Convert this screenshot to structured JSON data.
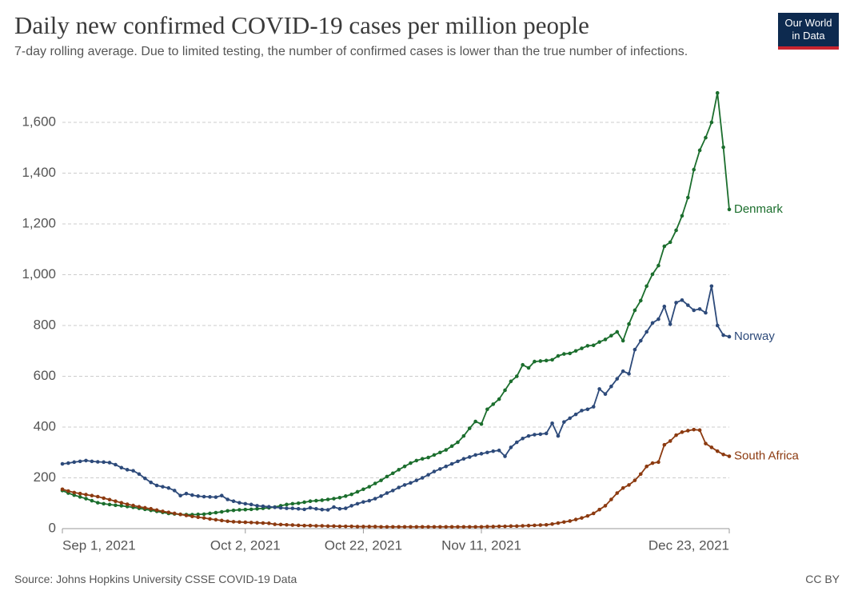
{
  "chart_data": {
    "type": "line",
    "title": "Daily new confirmed COVID-19 cases per million people",
    "subtitle": "7-day rolling average. Due to limited testing, the number of confirmed cases is lower than the true number of infections.",
    "logo": [
      "Our World",
      "in Data"
    ],
    "source": "Source: Johns Hopkins University CSSE COVID-19 Data",
    "license": "CC BY",
    "x": [
      "2021-09-01",
      "2021-09-02",
      "2021-09-03",
      "2021-09-04",
      "2021-09-05",
      "2021-09-06",
      "2021-09-07",
      "2021-09-08",
      "2021-09-09",
      "2021-09-10",
      "2021-09-11",
      "2021-09-12",
      "2021-09-13",
      "2021-09-14",
      "2021-09-15",
      "2021-09-16",
      "2021-09-17",
      "2021-09-18",
      "2021-09-19",
      "2021-09-20",
      "2021-09-21",
      "2021-09-22",
      "2021-09-23",
      "2021-09-24",
      "2021-09-25",
      "2021-09-26",
      "2021-09-27",
      "2021-09-28",
      "2021-09-29",
      "2021-09-30",
      "2021-10-01",
      "2021-10-02",
      "2021-10-03",
      "2021-10-04",
      "2021-10-05",
      "2021-10-06",
      "2021-10-07",
      "2021-10-08",
      "2021-10-09",
      "2021-10-10",
      "2021-10-11",
      "2021-10-12",
      "2021-10-13",
      "2021-10-14",
      "2021-10-15",
      "2021-10-16",
      "2021-10-17",
      "2021-10-18",
      "2021-10-19",
      "2021-10-20",
      "2021-10-21",
      "2021-10-22",
      "2021-10-23",
      "2021-10-24",
      "2021-10-25",
      "2021-10-26",
      "2021-10-27",
      "2021-10-28",
      "2021-10-29",
      "2021-10-30",
      "2021-10-31",
      "2021-11-01",
      "2021-11-02",
      "2021-11-03",
      "2021-11-04",
      "2021-11-05",
      "2021-11-06",
      "2021-11-07",
      "2021-11-08",
      "2021-11-09",
      "2021-11-10",
      "2021-11-11",
      "2021-11-12",
      "2021-11-13",
      "2021-11-14",
      "2021-11-15",
      "2021-11-16",
      "2021-11-17",
      "2021-11-18",
      "2021-11-19",
      "2021-11-20",
      "2021-11-21",
      "2021-11-22",
      "2021-11-23",
      "2021-11-24",
      "2021-11-25",
      "2021-11-26",
      "2021-11-27",
      "2021-11-28",
      "2021-11-29",
      "2021-11-30",
      "2021-12-01",
      "2021-12-02",
      "2021-12-03",
      "2021-12-04",
      "2021-12-05",
      "2021-12-06",
      "2021-12-07",
      "2021-12-08",
      "2021-12-09",
      "2021-12-10",
      "2021-12-11",
      "2021-12-12",
      "2021-12-13",
      "2021-12-14",
      "2021-12-15",
      "2021-12-16",
      "2021-12-17",
      "2021-12-18",
      "2021-12-19",
      "2021-12-20",
      "2021-12-21",
      "2021-12-22",
      "2021-12-23"
    ],
    "series": [
      {
        "name": "Denmark",
        "color": "#1b6e2d",
        "values": [
          150,
          140,
          132,
          125,
          118,
          110,
          102,
          98,
          95,
          92,
          90,
          87,
          84,
          80,
          76,
          72,
          68,
          64,
          60,
          58,
          56,
          55,
          55,
          56,
          57,
          60,
          63,
          66,
          70,
          72,
          74,
          75,
          76,
          78,
          80,
          82,
          85,
          90,
          95,
          98,
          100,
          104,
          108,
          110,
          112,
          115,
          118,
          122,
          128,
          135,
          145,
          155,
          165,
          178,
          190,
          205,
          218,
          232,
          245,
          258,
          268,
          275,
          280,
          290,
          300,
          310,
          325,
          340,
          365,
          395,
          422,
          412,
          470,
          490,
          510,
          545,
          580,
          600,
          645,
          633,
          658,
          660,
          662,
          665,
          680,
          688,
          690,
          700,
          710,
          720,
          722,
          735,
          745,
          760,
          775,
          740,
          806,
          860,
          898,
          955,
          1002,
          1036,
          1112,
          1128,
          1175,
          1232,
          1304,
          1414,
          1490,
          1540,
          1600,
          1716,
          1502,
          1257
        ]
      },
      {
        "name": "Norway",
        "color": "#2d4a7a",
        "values": [
          255,
          258,
          262,
          265,
          268,
          265,
          263,
          262,
          260,
          252,
          240,
          232,
          228,
          215,
          198,
          182,
          170,
          165,
          160,
          150,
          130,
          138,
          132,
          128,
          126,
          125,
          124,
          130,
          115,
          108,
          102,
          98,
          95,
          90,
          88,
          86,
          84,
          82,
          80,
          80,
          78,
          76,
          82,
          78,
          75,
          74,
          85,
          78,
          80,
          90,
          98,
          105,
          110,
          118,
          128,
          140,
          150,
          162,
          172,
          180,
          190,
          200,
          212,
          225,
          235,
          245,
          255,
          265,
          275,
          282,
          290,
          295,
          300,
          305,
          308,
          285,
          320,
          340,
          355,
          365,
          370,
          372,
          375,
          415,
          365,
          420,
          435,
          450,
          465,
          470,
          480,
          550,
          530,
          560,
          590,
          620,
          610,
          705,
          740,
          775,
          810,
          825,
          875,
          805,
          890,
          900,
          880,
          860,
          865,
          850,
          955,
          800,
          762,
          756
        ]
      },
      {
        "name": "South Africa",
        "color": "#8c3a10",
        "values": [
          155,
          148,
          142,
          138,
          134,
          130,
          126,
          120,
          114,
          108,
          102,
          96,
          91,
          86,
          82,
          78,
          73,
          68,
          64,
          60,
          56,
          52,
          48,
          45,
          42,
          38,
          35,
          32,
          29,
          27,
          26,
          25,
          24,
          23,
          22,
          21,
          17,
          16,
          15,
          14,
          13,
          12,
          12,
          11,
          11,
          10,
          10,
          9,
          9,
          9,
          8,
          8,
          8,
          8,
          7,
          7,
          7,
          7,
          7,
          7,
          7,
          7,
          7,
          7,
          7,
          7,
          7,
          7,
          7,
          7,
          7,
          7,
          8,
          8,
          9,
          9,
          10,
          10,
          11,
          12,
          13,
          14,
          15,
          18,
          22,
          26,
          30,
          36,
          42,
          50,
          60,
          75,
          90,
          115,
          140,
          160,
          172,
          190,
          215,
          245,
          258,
          262,
          330,
          345,
          368,
          380,
          386,
          390,
          388,
          335,
          320,
          305,
          292,
          285
        ]
      }
    ],
    "xlim": [
      "2021-09-01",
      "2021-12-23"
    ],
    "xticks": [
      {
        "value": "2021-09-01",
        "label": "Sep 1, 2021"
      },
      {
        "value": "2021-10-02",
        "label": "Oct 2, 2021"
      },
      {
        "value": "2021-10-22",
        "label": "Oct 22, 2021"
      },
      {
        "value": "2021-11-11",
        "label": "Nov 11, 2021"
      },
      {
        "value": "2021-12-23",
        "label": "Dec 23, 2021"
      }
    ],
    "ylim": [
      0,
      1750
    ],
    "yticks": [
      0,
      200,
      400,
      600,
      800,
      {
        "value": 1000,
        "label": "1,000"
      },
      {
        "value": 1200,
        "label": "1,200"
      },
      {
        "value": 1400,
        "label": "1,400"
      },
      {
        "value": 1600,
        "label": "1,600"
      }
    ],
    "grid": true
  }
}
